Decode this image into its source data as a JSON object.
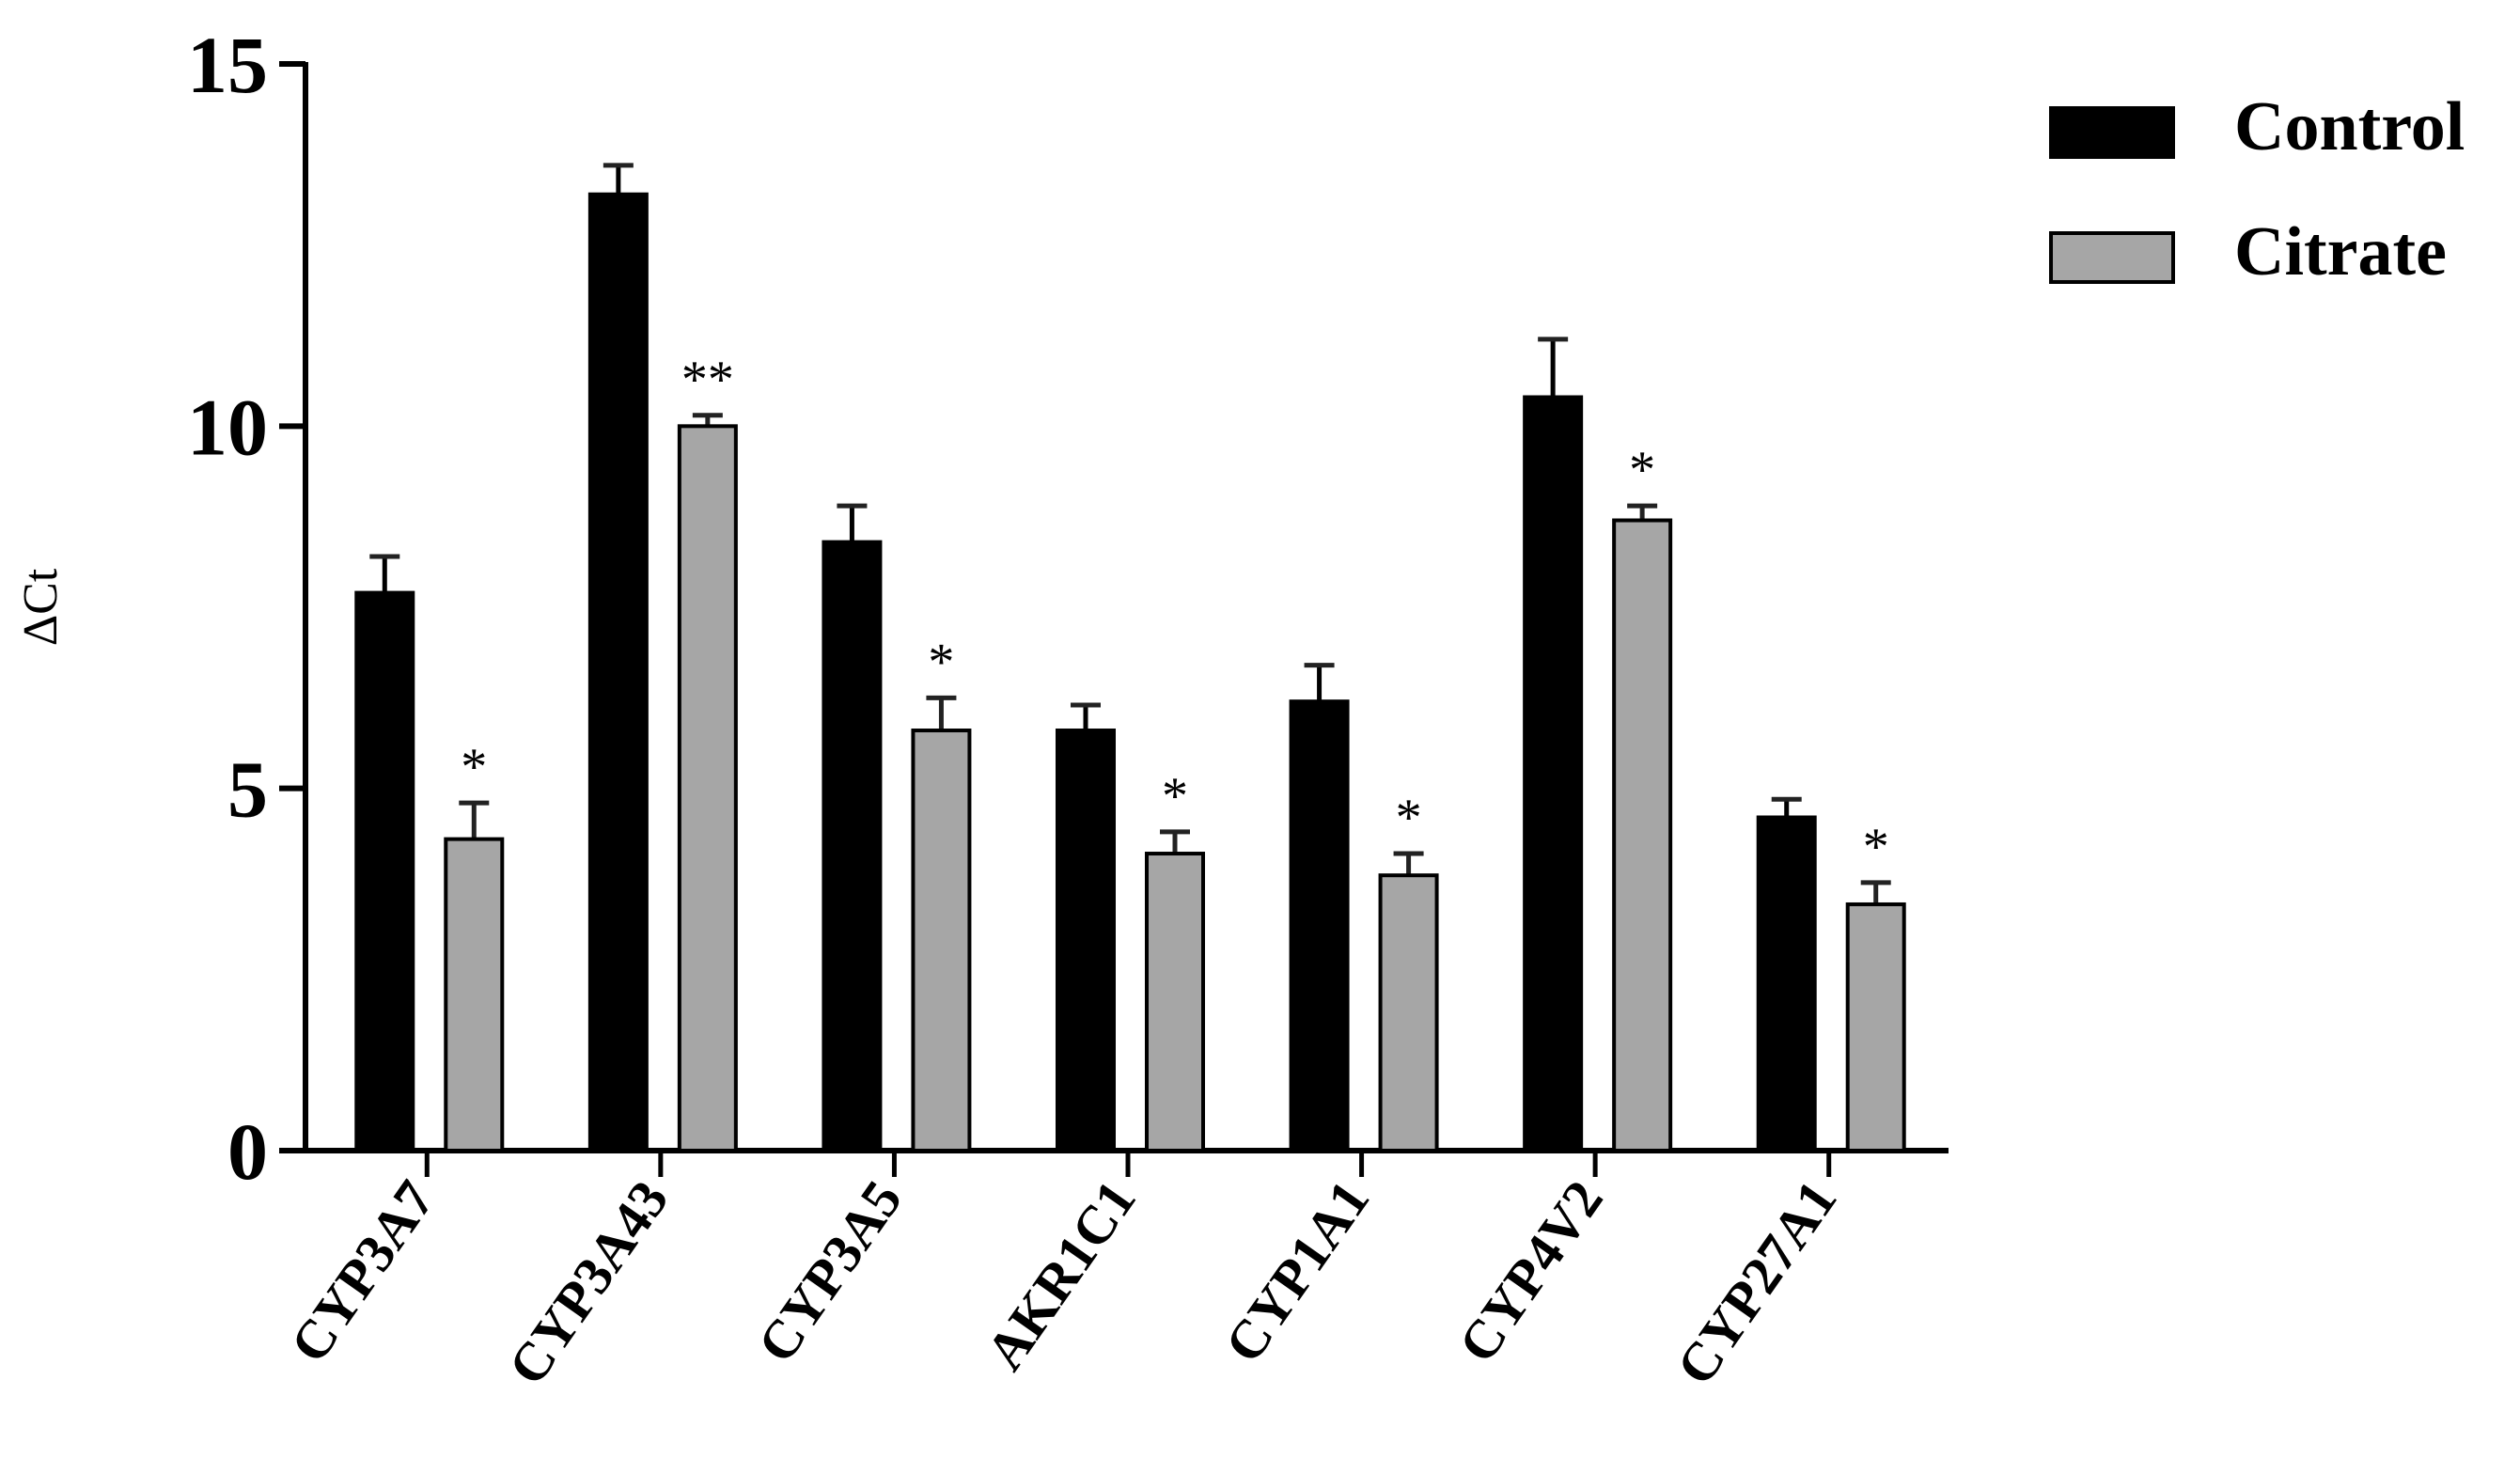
{
  "chart_data": {
    "type": "bar",
    "y_label": "ΔCt",
    "categories": [
      "CYP3A7",
      "CYP3A43",
      "CYP3A5",
      "AKR1C1",
      "CYP1A1",
      "CYP4V2",
      "CYP27A1"
    ],
    "series": [
      {
        "name": "Control",
        "color": "#000000",
        "values": [
          7.7,
          13.2,
          8.4,
          5.8,
          6.2,
          10.4,
          4.6
        ],
        "errors": [
          0.5,
          0.4,
          0.5,
          0.35,
          0.5,
          0.8,
          0.25
        ]
      },
      {
        "name": "Citrate",
        "color": "#a6a6a6",
        "values": [
          4.3,
          10.0,
          5.8,
          4.1,
          3.8,
          8.7,
          3.4
        ],
        "errors": [
          0.5,
          0.15,
          0.45,
          0.3,
          0.3,
          0.2,
          0.3
        ]
      }
    ],
    "significance": [
      "*",
      "**",
      "*",
      "*",
      "*",
      "*",
      "*"
    ],
    "ylim": [
      0,
      15
    ],
    "yticks": [
      0,
      5,
      10,
      15
    ],
    "legend": "top-right"
  }
}
